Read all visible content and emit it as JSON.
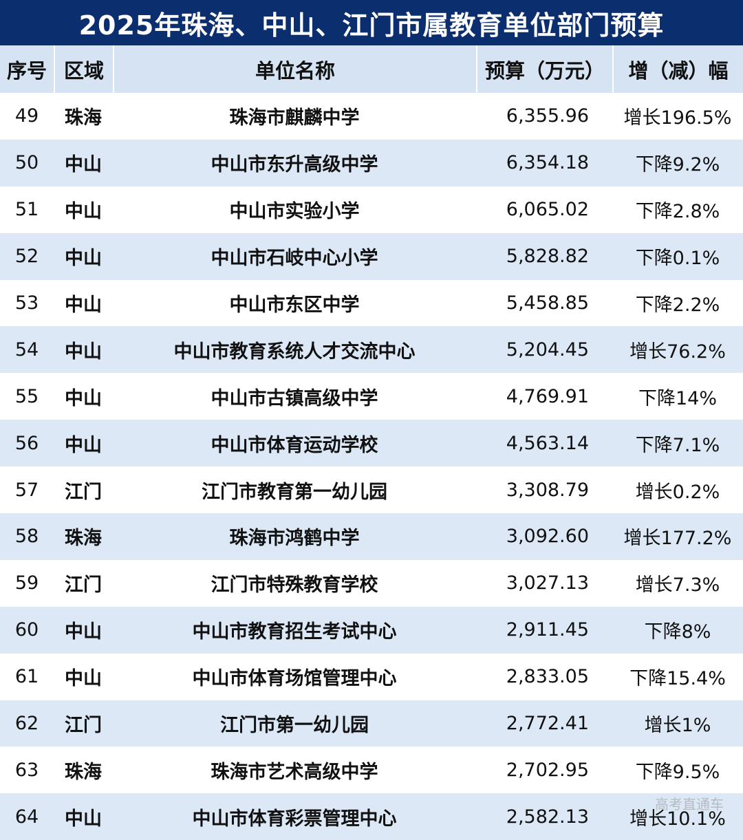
{
  "title": "2025年珠海、中山、江门市属教育单位部门预算",
  "headers": {
    "idx": "序号",
    "region": "区域",
    "name": "单位名称",
    "budget": "预算（万元）",
    "change": "增（减）幅"
  },
  "rows": [
    {
      "idx": "49",
      "region": "珠海",
      "name": "珠海市麒麟中学",
      "budget": "6,355.96",
      "change": "增长196.5%"
    },
    {
      "idx": "50",
      "region": "中山",
      "name": "中山市东升高级中学",
      "budget": "6,354.18",
      "change": "下降9.2%"
    },
    {
      "idx": "51",
      "region": "中山",
      "name": "中山市实验小学",
      "budget": "6,065.02",
      "change": "下降2.8%"
    },
    {
      "idx": "52",
      "region": "中山",
      "name": "中山市石岐中心小学",
      "budget": "5,828.82",
      "change": "下降0.1%"
    },
    {
      "idx": "53",
      "region": "中山",
      "name": "中山市东区中学",
      "budget": "5,458.85",
      "change": "下降2.2%"
    },
    {
      "idx": "54",
      "region": "中山",
      "name": "中山市教育系统人才交流中心",
      "budget": "5,204.45",
      "change": "增长76.2%"
    },
    {
      "idx": "55",
      "region": "中山",
      "name": "中山市古镇高级中学",
      "budget": "4,769.91",
      "change": "下降14%"
    },
    {
      "idx": "56",
      "region": "中山",
      "name": "中山市体育运动学校",
      "budget": "4,563.14",
      "change": "下降7.1%"
    },
    {
      "idx": "57",
      "region": "江门",
      "name": "江门市教育第一幼儿园",
      "budget": "3,308.79",
      "change": "增长0.2%"
    },
    {
      "idx": "58",
      "region": "珠海",
      "name": "珠海市鸿鹤中学",
      "budget": "3,092.60",
      "change": "增长177.2%"
    },
    {
      "idx": "59",
      "region": "江门",
      "name": "江门市特殊教育学校",
      "budget": "3,027.13",
      "change": "增长7.3%"
    },
    {
      "idx": "60",
      "region": "中山",
      "name": "中山市教育招生考试中心",
      "budget": "2,911.45",
      "change": "下降8%"
    },
    {
      "idx": "61",
      "region": "中山",
      "name": "中山市体育场馆管理中心",
      "budget": "2,833.05",
      "change": "下降15.4%"
    },
    {
      "idx": "62",
      "region": "江门",
      "name": "江门市第一幼儿园",
      "budget": "2,772.41",
      "change": "增长1%"
    },
    {
      "idx": "63",
      "region": "珠海",
      "name": "珠海市艺术高级中学",
      "budget": "2,702.95",
      "change": "下降9.5%"
    },
    {
      "idx": "64",
      "region": "中山",
      "name": "中山市体育彩票管理中心",
      "budget": "2,582.13",
      "change": "增长10.1%"
    }
  ],
  "watermark": "高考直通车",
  "colors": {
    "title_bg": "#0b2f6e",
    "header_bg": "#d5e3f3",
    "stripe_bg": "#dce8f5"
  }
}
